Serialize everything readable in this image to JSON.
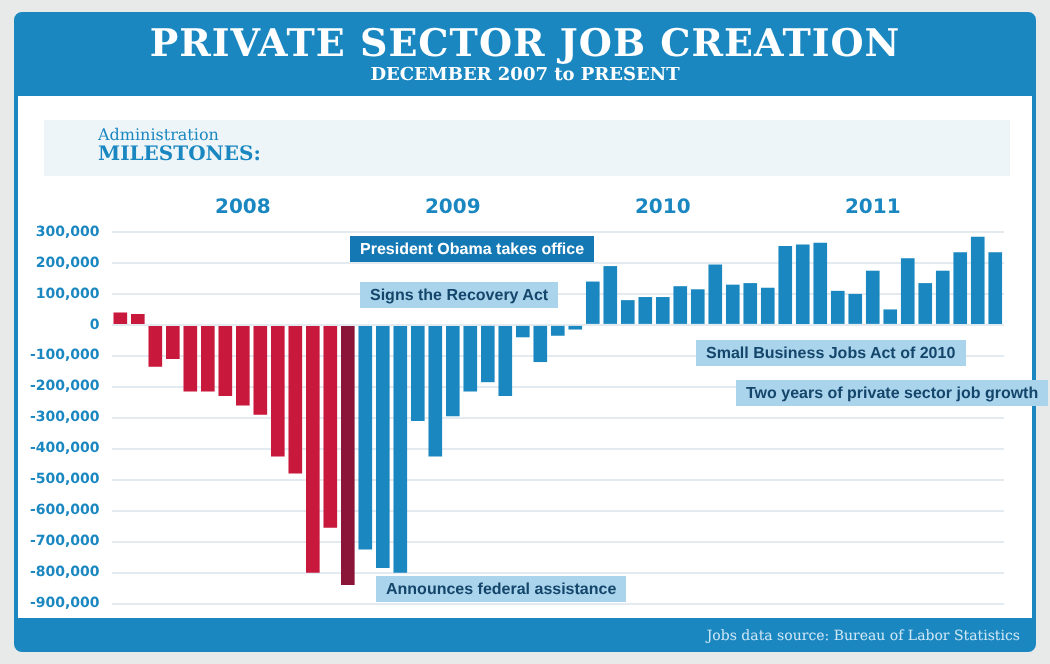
{
  "chart_data": {
    "type": "bar",
    "title": "PRIVATE SECTOR JOB CREATION",
    "subtitle": "DECEMBER 2007 to PRESENT",
    "categories": [
      null,
      null,
      null,
      null,
      null,
      null,
      null,
      "2008",
      null,
      null,
      null,
      null,
      null,
      null,
      null,
      null,
      null,
      null,
      null,
      "2009",
      null,
      null,
      null,
      null,
      null,
      null,
      null,
      null,
      null,
      null,
      null,
      "2010",
      null,
      null,
      null,
      null,
      null,
      null,
      null,
      null,
      null,
      null,
      null,
      "2011",
      null,
      null,
      null,
      null,
      null,
      null,
      null
    ],
    "values": [
      40000,
      35000,
      -135000,
      -110000,
      -215000,
      -215000,
      -230000,
      -260000,
      -290000,
      -425000,
      -480000,
      -800000,
      -655000,
      -840000,
      -725000,
      -785000,
      -800000,
      -310000,
      -425000,
      -295000,
      -215000,
      -185000,
      -230000,
      -40000,
      -120000,
      -35000,
      -15000,
      140000,
      190000,
      80000,
      90000,
      90000,
      125000,
      115000,
      195000,
      130000,
      135000,
      120000,
      255000,
      260000,
      265000,
      110000,
      100000,
      175000,
      50000,
      215000,
      135000,
      175000,
      235000,
      285000,
      235000
    ],
    "colors": [
      "#c8193c",
      "#c8193c",
      "#c8193c",
      "#c8193c",
      "#c8193c",
      "#c8193c",
      "#c8193c",
      "#c8193c",
      "#c8193c",
      "#c8193c",
      "#c8193c",
      "#c8193c",
      "#c8193c",
      "#8b1538",
      "#1a87c0",
      "#1a87c0",
      "#1a87c0",
      "#1a87c0",
      "#1a87c0",
      "#1a87c0",
      "#1a87c0",
      "#1a87c0",
      "#1a87c0",
      "#1a87c0",
      "#1a87c0",
      "#1a87c0",
      "#1a87c0",
      "#1a87c0",
      "#1a87c0",
      "#1a87c0",
      "#1a87c0",
      "#1a87c0",
      "#1a87c0",
      "#1a87c0",
      "#1a87c0",
      "#1a87c0",
      "#1a87c0",
      "#1a87c0",
      "#1a87c0",
      "#1a87c0",
      "#1a87c0",
      "#1a87c0",
      "#1a87c0",
      "#1a87c0",
      "#1a87c0",
      "#1a87c0",
      "#1a87c0",
      "#1a87c0",
      "#1a87c0",
      "#1a87c0",
      "#1a87c0"
    ],
    "ylim": [
      -900000,
      300000
    ],
    "yticks": [
      {
        "value": 300000,
        "label": "300,000"
      },
      {
        "value": 200000,
        "label": "200,000"
      },
      {
        "value": 100000,
        "label": "100,000"
      },
      0,
      {
        "value": -100000,
        "label": "-100,000"
      },
      {
        "value": -200000,
        "label": "-200,000"
      },
      {
        "value": -300000,
        "label": "-300,000"
      },
      {
        "value": -400000,
        "label": "-400,000"
      },
      {
        "value": -500000,
        "label": "-500,000"
      },
      {
        "value": -600000,
        "label": "-600,000"
      },
      {
        "value": -700000,
        "label": "-700,000"
      },
      {
        "value": -800000,
        "label": "-800,000"
      },
      {
        "value": -900000,
        "label": "-900,000"
      }
    ],
    "grid": "y",
    "annotations": [
      "Administration MILESTONES:",
      "President Obama takes office",
      "Signs the Recovery Act",
      "Announces federal assistance",
      "Small Business Jobs Act of 2010",
      "Two years of private sector job growth",
      "Jobs data source: Bureau of Labor Statistics"
    ]
  }
}
